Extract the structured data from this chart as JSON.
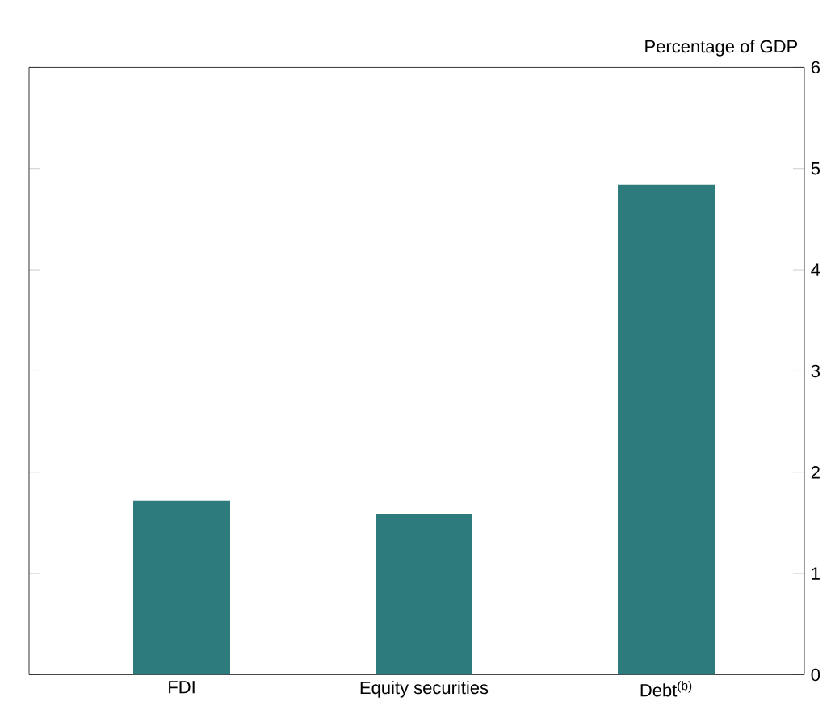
{
  "chart_data": {
    "type": "bar",
    "ylabel": "Percentage of GDP",
    "categories": [
      "FDI",
      "Equity securities",
      "Debt$^{(b)}$"
    ],
    "values": [
      1.72,
      1.59,
      4.84
    ],
    "color": "#2e7b7e",
    "ylim": [
      0,
      6
    ],
    "yticks": [
      0,
      1,
      2,
      3,
      4,
      5,
      6
    ]
  }
}
